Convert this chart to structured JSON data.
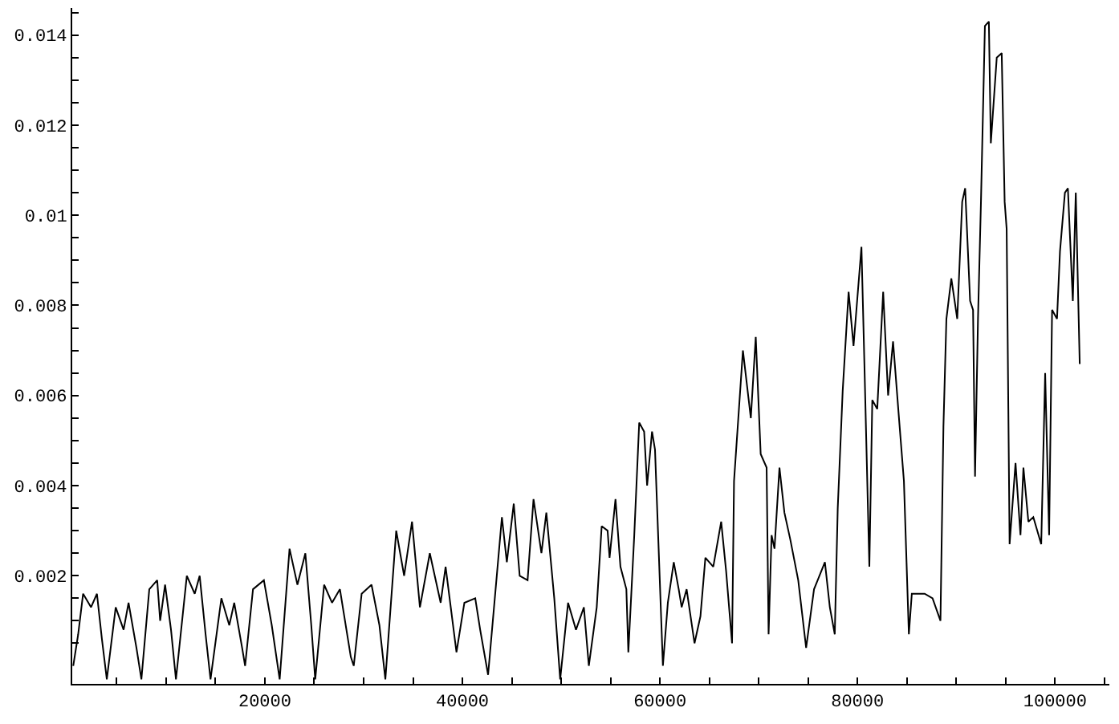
{
  "chart_data": {
    "type": "line",
    "x": [
      600,
      1100,
      1600,
      2400,
      3000,
      3500,
      4000,
      4900,
      5700,
      6200,
      7000,
      7500,
      8300,
      9100,
      9400,
      9900,
      10500,
      11000,
      12100,
      12900,
      13400,
      14000,
      14500,
      15600,
      16400,
      16900,
      17700,
      18000,
      18800,
      19900,
      20700,
      21500,
      22500,
      23300,
      24100,
      24700,
      25100,
      26000,
      26800,
      27600,
      28700,
      29000,
      29800,
      30800,
      31600,
      32200,
      33300,
      34100,
      34900,
      35700,
      36700,
      37800,
      38300,
      39400,
      40200,
      41300,
      41800,
      42600,
      44000,
      44500,
      45200,
      45800,
      46600,
      47200,
      48000,
      48500,
      49300,
      49900,
      50700,
      51500,
      52300,
      52800,
      53600,
      54100,
      54700,
      54900,
      55500,
      56000,
      56600,
      56800,
      57400,
      57900,
      58400,
      58700,
      59200,
      59500,
      59800,
      60300,
      60800,
      61400,
      61900,
      62200,
      62700,
      63500,
      64100,
      64600,
      65400,
      66200,
      66700,
      67300,
      67500,
      68400,
      69200,
      69700,
      70200,
      70800,
      71000,
      71300,
      71600,
      72100,
      72600,
      73200,
      74000,
      74800,
      75600,
      76700,
      77200,
      77700,
      78000,
      78500,
      79100,
      79600,
      80400,
      80700,
      81200,
      81500,
      82000,
      82600,
      83100,
      83600,
      84200,
      84700,
      85200,
      85500,
      86800,
      87600,
      88400,
      88700,
      89000,
      89500,
      90100,
      90600,
      90900,
      91400,
      91700,
      91900,
      92200,
      92500,
      92900,
      93300,
      93500,
      94100,
      94600,
      94900,
      95100,
      95400,
      96000,
      96500,
      96800,
      97300,
      97800,
      98600,
      99000,
      99400,
      99700,
      100200,
      100500,
      101000,
      101300,
      101800,
      102100,
      102500
    ],
    "series": [
      {
        "color": "#000000",
        "values": [
          0.0,
          0.0007,
          0.0016,
          0.0013,
          0.0016,
          0.0006,
          -0.0003,
          0.0013,
          0.0008,
          0.0014,
          0.0004,
          -0.0003,
          0.0017,
          0.0019,
          0.001,
          0.0018,
          0.0008,
          -0.0003,
          0.002,
          0.0016,
          0.002,
          0.0007,
          -0.0003,
          0.0015,
          0.0009,
          0.0014,
          0.0004,
          0.0,
          0.0017,
          0.0019,
          0.0009,
          -0.0003,
          0.0026,
          0.0018,
          0.0025,
          0.0009,
          -0.0003,
          0.0018,
          0.0014,
          0.0017,
          0.0002,
          0.0,
          0.0016,
          0.0018,
          0.0009,
          -0.0003,
          0.003,
          0.002,
          0.0032,
          0.0013,
          0.0025,
          0.0014,
          0.0022,
          0.0003,
          0.0014,
          0.0015,
          0.0008,
          -0.0002,
          0.0033,
          0.0023,
          0.0036,
          0.002,
          0.0019,
          0.0037,
          0.0025,
          0.0034,
          0.0015,
          -0.0003,
          0.0014,
          0.0008,
          0.0013,
          0.0,
          0.0013,
          0.0031,
          0.003,
          0.0024,
          0.0037,
          0.0022,
          0.0017,
          0.0003,
          0.0029,
          0.0054,
          0.0052,
          0.004,
          0.0052,
          0.0048,
          0.003,
          0.0,
          0.0014,
          0.0023,
          0.0017,
          0.0013,
          0.0017,
          0.0005,
          0.0011,
          0.0024,
          0.0022,
          0.0032,
          0.0021,
          0.0005,
          0.0041,
          0.007,
          0.0055,
          0.0073,
          0.0047,
          0.0044,
          0.0007,
          0.0029,
          0.0026,
          0.0044,
          0.0034,
          0.0028,
          0.0019,
          0.0004,
          0.0017,
          0.0023,
          0.0013,
          0.0007,
          0.0035,
          0.0061,
          0.0083,
          0.0071,
          0.0093,
          0.0067,
          0.0022,
          0.0059,
          0.0057,
          0.0083,
          0.006,
          0.0072,
          0.0055,
          0.0041,
          0.0007,
          0.0016,
          0.0016,
          0.0015,
          0.001,
          0.0053,
          0.0077,
          0.0086,
          0.0077,
          0.0103,
          0.0106,
          0.0081,
          0.0079,
          0.0042,
          0.0077,
          0.0103,
          0.0142,
          0.0143,
          0.0116,
          0.0135,
          0.0136,
          0.0103,
          0.0097,
          0.0027,
          0.0045,
          0.0029,
          0.0044,
          0.0032,
          0.0033,
          0.0027,
          0.0065,
          0.0029,
          0.0079,
          0.0077,
          0.0092,
          0.0105,
          0.0106,
          0.0081,
          0.0105,
          0.0067
        ]
      }
    ],
    "xlim": [
      500,
      105500
    ],
    "ylim": [
      -0.0004,
      0.0146
    ],
    "xticks": [
      {
        "value": 5000,
        "label": null
      },
      {
        "value": 10000,
        "label": null
      },
      {
        "value": 15000,
        "label": null
      },
      20000,
      {
        "value": 25000,
        "label": null
      },
      {
        "value": 30000,
        "label": null
      },
      {
        "value": 35000,
        "label": null
      },
      40000,
      {
        "value": 45000,
        "label": null
      },
      {
        "value": 50000,
        "label": null
      },
      {
        "value": 55000,
        "label": null
      },
      60000,
      {
        "value": 65000,
        "label": null
      },
      {
        "value": 70000,
        "label": null
      },
      {
        "value": 75000,
        "label": null
      },
      80000,
      {
        "value": 85000,
        "label": null
      },
      {
        "value": 90000,
        "label": null
      },
      {
        "value": 95000,
        "label": null
      },
      100000,
      {
        "value": 105000,
        "label": null
      }
    ],
    "yticks": [
      {
        "value": 0.0005,
        "label": null
      },
      {
        "value": 0.001,
        "label": null
      },
      {
        "value": 0.0015,
        "label": null
      },
      0.002,
      {
        "value": 0.0025,
        "label": null
      },
      {
        "value": 0.003,
        "label": null
      },
      {
        "value": 0.0035,
        "label": null
      },
      0.004,
      {
        "value": 0.0045,
        "label": null
      },
      {
        "value": 0.005,
        "label": null
      },
      {
        "value": 0.0055,
        "label": null
      },
      0.006,
      {
        "value": 0.0065,
        "label": null
      },
      {
        "value": 0.007,
        "label": null
      },
      {
        "value": 0.0075,
        "label": null
      },
      0.008,
      {
        "value": 0.0085,
        "label": null
      },
      {
        "value": 0.009,
        "label": null
      },
      {
        "value": 0.0095,
        "label": null
      },
      {
        "value": 0.01,
        "label": "0.01"
      },
      {
        "value": 0.0105,
        "label": null
      },
      {
        "value": 0.011,
        "label": null
      },
      {
        "value": 0.0115,
        "label": null
      },
      0.012,
      {
        "value": 0.0125,
        "label": null
      },
      {
        "value": 0.013,
        "label": null
      },
      {
        "value": 0.0135,
        "label": null
      },
      0.014,
      {
        "value": 0.0145,
        "label": null
      }
    ],
    "marker": "none",
    "line_style": "solid"
  }
}
